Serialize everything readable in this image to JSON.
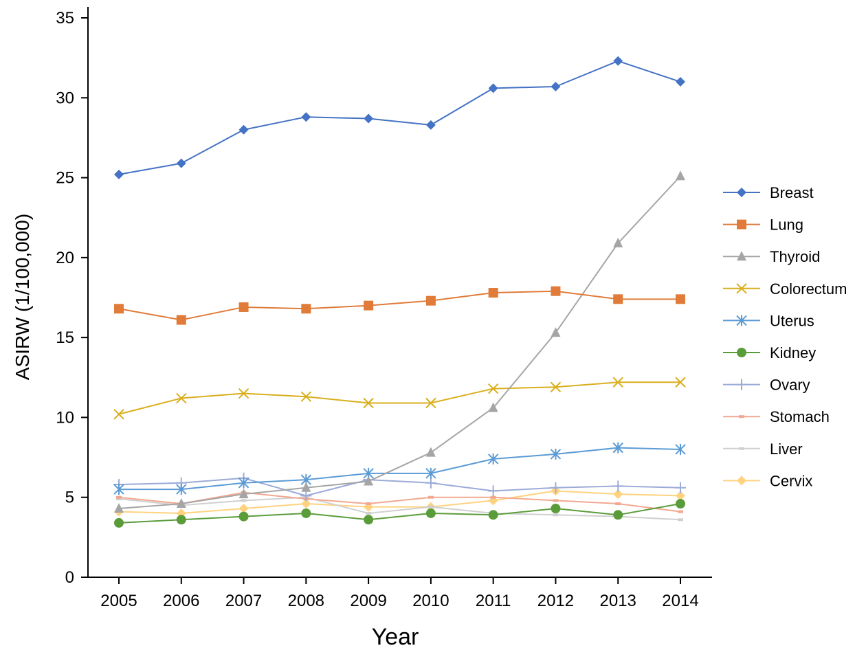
{
  "chart_data": {
    "type": "line",
    "xlabel": "Year",
    "ylabel": "ASIRW (1/100,000)",
    "ylim": [
      0,
      35
    ],
    "yticks": [
      0,
      5,
      10,
      15,
      20,
      25,
      30,
      35
    ],
    "categories": [
      "2005",
      "2006",
      "2007",
      "2008",
      "2009",
      "2010",
      "2011",
      "2012",
      "2013",
      "2014"
    ],
    "grid": false,
    "legend_position": "right",
    "series": [
      {
        "name": "Breast",
        "color": "#4472C4",
        "marker": "diamond",
        "values": [
          25.2,
          25.9,
          28.0,
          28.8,
          28.7,
          28.3,
          30.6,
          30.7,
          32.3,
          31.0
        ]
      },
      {
        "name": "Lung",
        "color": "#E07B39",
        "marker": "square",
        "values": [
          16.8,
          16.1,
          16.9,
          16.8,
          17.0,
          17.3,
          17.8,
          17.9,
          17.4,
          17.4
        ]
      },
      {
        "name": "Thyroid",
        "color": "#A5A5A5",
        "marker": "triangle",
        "values": [
          4.3,
          4.6,
          5.2,
          5.6,
          6.0,
          7.8,
          10.6,
          15.3,
          20.9,
          25.1
        ]
      },
      {
        "name": "Colorectum",
        "color": "#D9AE1C",
        "marker": "x",
        "values": [
          10.2,
          11.2,
          11.5,
          11.3,
          10.9,
          10.9,
          11.8,
          11.9,
          12.2,
          12.2
        ]
      },
      {
        "name": "Uterus",
        "color": "#5B9BD5",
        "marker": "asterisk",
        "values": [
          5.5,
          5.5,
          5.9,
          6.1,
          6.5,
          6.5,
          7.4,
          7.7,
          8.1,
          8.0
        ]
      },
      {
        "name": "Kidney",
        "color": "#5A9C3A",
        "marker": "circle",
        "values": [
          3.4,
          3.6,
          3.8,
          4.0,
          3.6,
          4.0,
          3.9,
          4.3,
          3.9,
          4.6
        ]
      },
      {
        "name": "Ovary",
        "color": "#9BABD8",
        "marker": "plus",
        "values": [
          5.8,
          5.9,
          6.2,
          5.1,
          6.1,
          5.9,
          5.4,
          5.6,
          5.7,
          5.6
        ]
      },
      {
        "name": "Stomach",
        "color": "#F2A890",
        "marker": "dash",
        "values": [
          5.0,
          4.6,
          5.3,
          4.9,
          4.6,
          5.0,
          5.0,
          4.8,
          4.6,
          4.1
        ]
      },
      {
        "name": "Liver",
        "color": "#D0D0D0",
        "marker": "dash",
        "values": [
          4.9,
          4.5,
          4.8,
          5.0,
          4.0,
          4.4,
          4.0,
          3.9,
          3.8,
          3.6
        ]
      },
      {
        "name": "Cervix",
        "color": "#FFD27F",
        "marker": "diamond",
        "values": [
          4.1,
          4.0,
          4.3,
          4.6,
          4.4,
          4.4,
          4.8,
          5.4,
          5.2,
          5.1
        ]
      }
    ]
  }
}
